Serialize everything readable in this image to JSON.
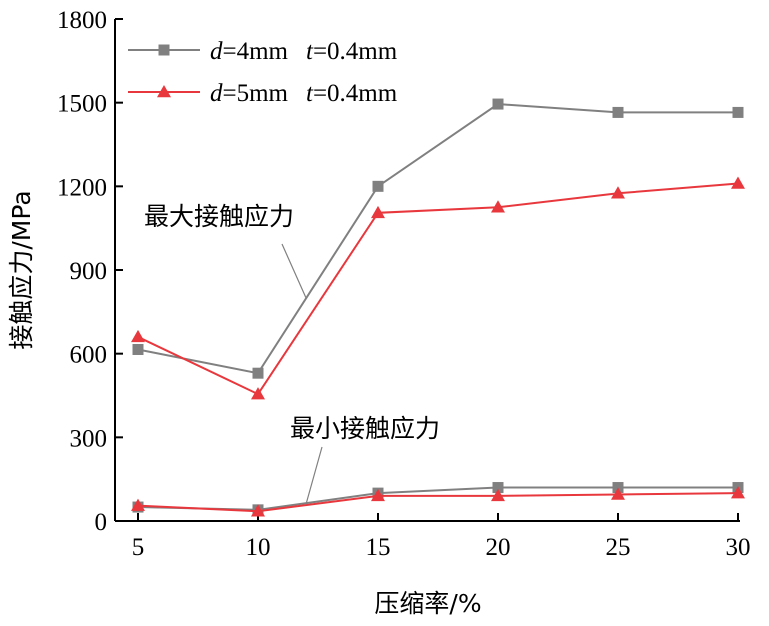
{
  "chart_data": {
    "type": "line",
    "title": "",
    "xlabel": "压缩率/%",
    "ylabel": "接触应力/MPa",
    "x": [
      5,
      10,
      15,
      20,
      25,
      30
    ],
    "xlim": [
      5,
      30
    ],
    "ylim": [
      0,
      1800
    ],
    "yticks": [
      0,
      300,
      600,
      900,
      1200,
      1500,
      1800
    ],
    "xticks": [
      5,
      10,
      15,
      20,
      25,
      30
    ],
    "grid": false,
    "legend_placement": "top-left",
    "colors": {
      "d4": "#808080",
      "d5": "#e8383d",
      "leader": "#808080"
    },
    "series": [
      {
        "key": "d4_max",
        "name": "d=4mm t=0.4mm",
        "legend": {
          "d_var": "d",
          "d_val": "=4mm",
          "t_var": "t",
          "t_val": "=0.4mm"
        },
        "marker": "square",
        "color": "#808080",
        "values": [
          615,
          530,
          1200,
          1495,
          1465,
          1465
        ]
      },
      {
        "key": "d5_max",
        "name": "d=5mm t=0.4mm",
        "legend": {
          "d_var": "d",
          "d_val": "=5mm",
          "t_var": "t",
          "t_val": "=0.4mm"
        },
        "marker": "triangle",
        "color": "#e8383d",
        "values": [
          660,
          455,
          1105,
          1125,
          1175,
          1210
        ]
      },
      {
        "key": "d4_min",
        "marker": "square",
        "color": "#808080",
        "values": [
          50,
          40,
          100,
          120,
          120,
          120
        ]
      },
      {
        "key": "d5_min",
        "marker": "triangle",
        "color": "#e8383d",
        "values": [
          55,
          35,
          90,
          90,
          95,
          100
        ]
      }
    ],
    "annotations": [
      {
        "text": "最大接触应力",
        "points_to": {
          "x": 12,
          "y": 800
        }
      },
      {
        "text": "最小接触应力",
        "points_to": {
          "x": 12,
          "y": 60
        }
      }
    ]
  }
}
